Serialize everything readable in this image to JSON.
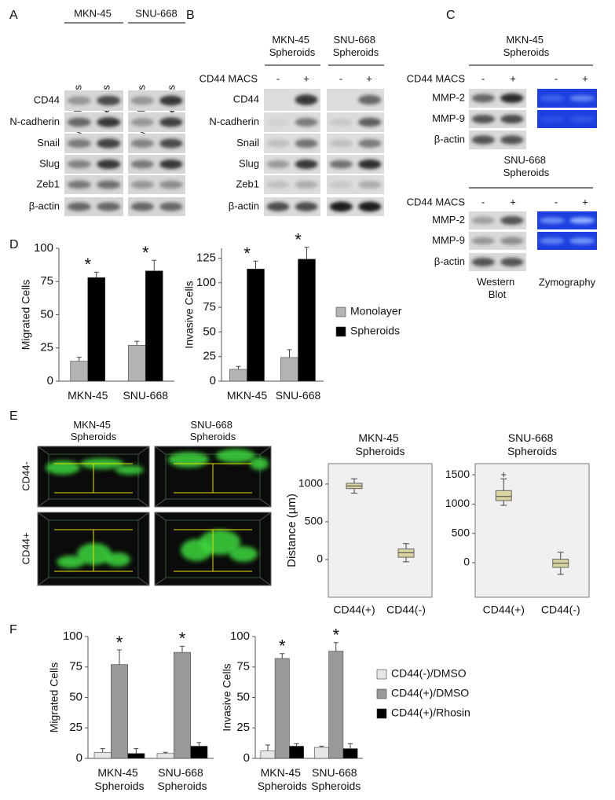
{
  "panel_labels": [
    "A",
    "B",
    "C",
    "D",
    "E",
    "F"
  ],
  "blot_A": {
    "groups": [
      "MKN-45",
      "SNU-668"
    ],
    "columns": [
      "Monolayers",
      "Spheroids",
      "Monolyaers",
      "Spheroids"
    ],
    "rows": [
      "CD44",
      "N-cadherin",
      "Snail",
      "Slug",
      "Zeb1",
      "β-actin"
    ]
  },
  "blot_B": {
    "groups": [
      "MKN-45 Spheroids",
      "SNU-668 Spheroids"
    ],
    "condition": "CD44 MACS",
    "signs": [
      "-",
      "+",
      "-",
      "+"
    ],
    "rows": [
      "CD44",
      "N-cadherin",
      "Snail",
      "Slug",
      "Zeb1",
      "β-actin"
    ]
  },
  "blot_C": {
    "blocks": [
      {
        "title": "MKN-45 Spheroids",
        "condition": "CD44 MACS",
        "signs": [
          "-",
          "+",
          "-",
          "+"
        ],
        "rows": [
          "MMP-2",
          "MMP-9",
          "β-actin"
        ]
      },
      {
        "title": "SNU-668 Spheroids",
        "condition": "CD44 MACS",
        "signs": [
          "-",
          "+",
          "-",
          "+"
        ],
        "rows": [
          "MMP-2",
          "MMP-9",
          "β-actin"
        ]
      }
    ],
    "footer": [
      "Western Blot",
      "Zymography"
    ]
  },
  "images_E": {
    "columns": [
      "MKN-45 Spheroids",
      "SNU-668 Spheroids"
    ],
    "rows": [
      "CD44-",
      "CD44+"
    ]
  },
  "chart_data": [
    {
      "type": "bar",
      "y_label": "Migrated Cells",
      "categories": [
        "MKN-45",
        "SNU-668"
      ],
      "series": [
        {
          "color": "#b3b3b3",
          "values": [
            15,
            27
          ],
          "errors": [
            3,
            3
          ]
        },
        {
          "color": "#000000",
          "values": [
            78,
            83
          ],
          "errors": [
            4,
            8
          ]
        }
      ],
      "ylim": [
        0,
        100
      ],
      "yticks": [
        0,
        25,
        50,
        75,
        100
      ],
      "annotation": "*"
    },
    {
      "type": "bar",
      "y_label": "Invasive Cells",
      "categories": [
        "MKN-45",
        "SNU-668"
      ],
      "series": [
        {
          "name": "Monolayer",
          "color": "#b3b3b3",
          "values": [
            12,
            24
          ],
          "errors": [
            3,
            8
          ]
        },
        {
          "name": "Spheroids",
          "color": "#000000",
          "values": [
            114,
            124
          ],
          "errors": [
            8,
            12
          ]
        }
      ],
      "ylim": [
        0,
        135
      ],
      "yticks": [
        0,
        25,
        50,
        75,
        100,
        125
      ],
      "annotation": "*",
      "legend": "right"
    },
    {
      "type": "box",
      "title": "MKN-45 Spheroids",
      "y_label": "Distance (µm)",
      "categories": [
        "CD44(+)",
        "CD44(-)"
      ],
      "boxes": [
        {
          "min": 880,
          "q1": 940,
          "median": 975,
          "q3": 1010,
          "max": 1070,
          "outliers": []
        },
        {
          "min": -30,
          "q1": 30,
          "median": 90,
          "q3": 140,
          "max": 210,
          "outliers": []
        }
      ],
      "color": "#d9d3a0",
      "ylim": [
        -500,
        1270
      ],
      "yticks": [
        0,
        500,
        1000
      ]
    },
    {
      "type": "box",
      "title": "SNU-668 Spheroids",
      "categories": [
        "CD44(+)",
        "CD44(-)"
      ],
      "boxes": [
        {
          "min": 980,
          "q1": 1060,
          "median": 1130,
          "q3": 1230,
          "max": 1430,
          "outliers": [
            1500
          ]
        },
        {
          "min": -200,
          "q1": -80,
          "median": -10,
          "q3": 60,
          "max": 180,
          "outliers": []
        }
      ],
      "color": "#d9d3a0",
      "ylim": [
        -590,
        1690
      ],
      "yticks": [
        0,
        500,
        1000,
        1500
      ]
    },
    {
      "type": "bar",
      "y_label": "Migrated Cells",
      "categories": [
        "MKN-45 Spheroids",
        "SNU-668 Spheroids"
      ],
      "series": [
        {
          "color": "#e6e6e6",
          "values": [
            5,
            4
          ],
          "errors": [
            3,
            1
          ]
        },
        {
          "color": "#999999",
          "values": [
            77,
            87
          ],
          "errors": [
            12,
            5
          ]
        },
        {
          "color": "#000000",
          "values": [
            4,
            10
          ],
          "errors": [
            4,
            3
          ]
        }
      ],
      "ylim": [
        0,
        100
      ],
      "yticks": [
        0,
        25,
        50,
        75,
        100
      ],
      "annotation": "*"
    },
    {
      "type": "bar",
      "y_label": "Invasive Cells",
      "categories": [
        "MKN-45 Spheroids",
        "SNU-668 Spheroids"
      ],
      "series": [
        {
          "name": "CD44(-)/DMSO",
          "color": "#e6e6e6",
          "values": [
            6,
            9
          ],
          "errors": [
            5,
            1
          ]
        },
        {
          "name": "CD44(+)/DMSO",
          "color": "#999999",
          "values": [
            82,
            88
          ],
          "errors": [
            4,
            7
          ]
        },
        {
          "name": "CD44(+)/Rhosin",
          "color": "#000000",
          "values": [
            10,
            8
          ],
          "errors": [
            2,
            4
          ]
        }
      ],
      "ylim": [
        0,
        100
      ],
      "yticks": [
        0,
        25,
        50,
        75,
        100
      ],
      "annotation": "*",
      "legend": "right"
    }
  ]
}
